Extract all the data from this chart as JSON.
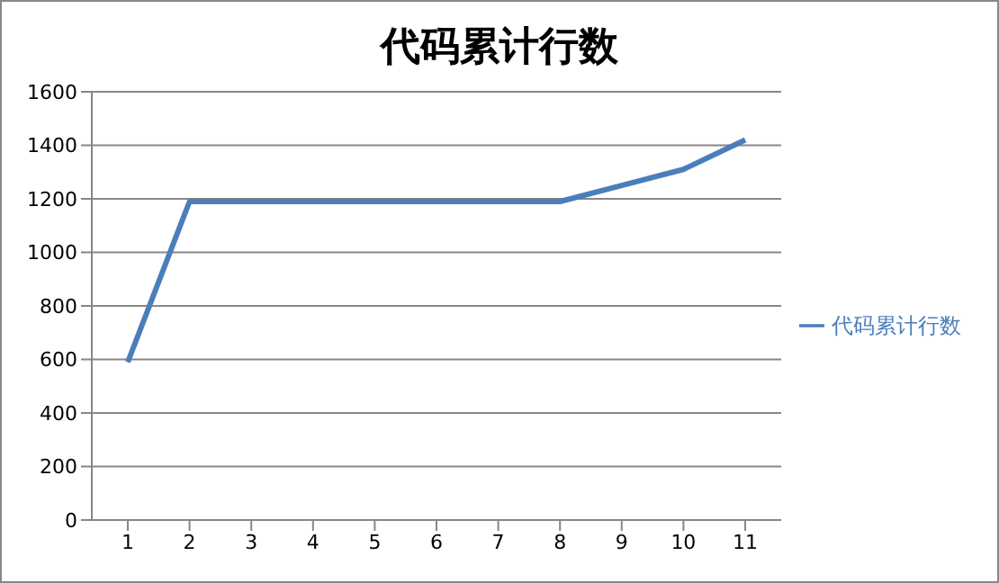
{
  "chart_data": {
    "type": "line",
    "title": "代码累计行数",
    "categories": [
      "1",
      "2",
      "3",
      "4",
      "5",
      "6",
      "7",
      "8",
      "9",
      "10",
      "11"
    ],
    "series": [
      {
        "name": "代码累计行数",
        "color": "#4a7ebb",
        "values": [
          590,
          1190,
          1190,
          1190,
          1190,
          1190,
          1190,
          1190,
          1250,
          1310,
          1420
        ]
      }
    ],
    "ylim": [
      0,
      1600
    ],
    "yticks": [
      0,
      200,
      400,
      600,
      800,
      1000,
      1200,
      1400,
      1600
    ],
    "grid": "y",
    "legend": "right",
    "marker": "none",
    "line_style": "solid"
  }
}
